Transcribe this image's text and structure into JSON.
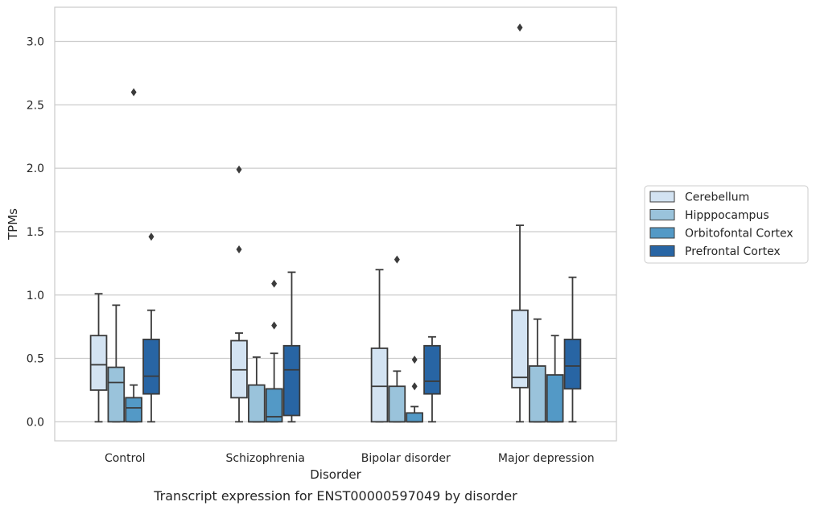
{
  "caption": "Transcript expression for ENST00000597049 by disorder",
  "chart_data": {
    "type": "boxplot",
    "xlabel": "Disorder",
    "ylabel": "TPMs",
    "ylim": [
      -0.15,
      3.27
    ],
    "yticks": [
      "0.0",
      "0.5",
      "1.0",
      "1.5",
      "2.0",
      "2.5",
      "3.0"
    ],
    "grid": "horizontal",
    "legend_position": "right",
    "categories": [
      "Control",
      "Schizophrenia",
      "Bipolar disorder",
      "Major depression"
    ],
    "series": [
      {
        "name": "Cerebellum",
        "color": "#d3e3f2",
        "boxes": [
          {
            "whisker_low": 0.0,
            "q1": 0.25,
            "median": 0.45,
            "q3": 0.68,
            "whisker_high": 1.01,
            "outliers": []
          },
          {
            "whisker_low": 0.0,
            "q1": 0.19,
            "median": 0.41,
            "q3": 0.64,
            "whisker_high": 0.7,
            "outliers": [
              1.36,
              1.99
            ]
          },
          {
            "whisker_low": 0.0,
            "q1": 0.0,
            "median": 0.28,
            "q3": 0.58,
            "whisker_high": 1.2,
            "outliers": []
          },
          {
            "whisker_low": 0.0,
            "q1": 0.27,
            "median": 0.35,
            "q3": 0.88,
            "whisker_high": 1.55,
            "outliers": [
              3.11
            ]
          }
        ]
      },
      {
        "name": "Hipppocampus",
        "color": "#9ac3db",
        "boxes": [
          {
            "whisker_low": 0.0,
            "q1": 0.0,
            "median": 0.31,
            "q3": 0.43,
            "whisker_high": 0.92,
            "outliers": []
          },
          {
            "whisker_low": 0.0,
            "q1": 0.0,
            "median": 0.0,
            "q3": 0.29,
            "whisker_high": 0.51,
            "outliers": []
          },
          {
            "whisker_low": 0.0,
            "q1": 0.0,
            "median": 0.0,
            "q3": 0.28,
            "whisker_high": 0.4,
            "outliers": [
              1.28
            ]
          },
          {
            "whisker_low": 0.0,
            "q1": 0.0,
            "median": 0.0,
            "q3": 0.44,
            "whisker_high": 0.81,
            "outliers": []
          }
        ]
      },
      {
        "name": "Orbitofontal Cortex",
        "color": "#5399c6",
        "boxes": [
          {
            "whisker_low": 0.0,
            "q1": 0.0,
            "median": 0.11,
            "q3": 0.19,
            "whisker_high": 0.29,
            "outliers": [
              2.6
            ]
          },
          {
            "whisker_low": 0.0,
            "q1": 0.0,
            "median": 0.04,
            "q3": 0.26,
            "whisker_high": 0.54,
            "outliers": [
              0.76,
              1.09
            ]
          },
          {
            "whisker_low": 0.0,
            "q1": 0.0,
            "median": 0.0,
            "q3": 0.07,
            "whisker_high": 0.12,
            "outliers": [
              0.28,
              0.49
            ]
          },
          {
            "whisker_low": 0.0,
            "q1": 0.0,
            "median": 0.0,
            "q3": 0.37,
            "whisker_high": 0.68,
            "outliers": []
          }
        ]
      },
      {
        "name": "Prefrontal Cortex",
        "color": "#2865a4",
        "boxes": [
          {
            "whisker_low": 0.0,
            "q1": 0.22,
            "median": 0.36,
            "q3": 0.65,
            "whisker_high": 0.88,
            "outliers": [
              1.46
            ]
          },
          {
            "whisker_low": 0.0,
            "q1": 0.05,
            "median": 0.41,
            "q3": 0.6,
            "whisker_high": 1.18,
            "outliers": []
          },
          {
            "whisker_low": 0.0,
            "q1": 0.22,
            "median": 0.32,
            "q3": 0.6,
            "whisker_high": 0.67,
            "outliers": []
          },
          {
            "whisker_low": 0.0,
            "q1": 0.26,
            "median": 0.44,
            "q3": 0.65,
            "whisker_high": 1.14,
            "outliers": []
          }
        ]
      }
    ]
  }
}
